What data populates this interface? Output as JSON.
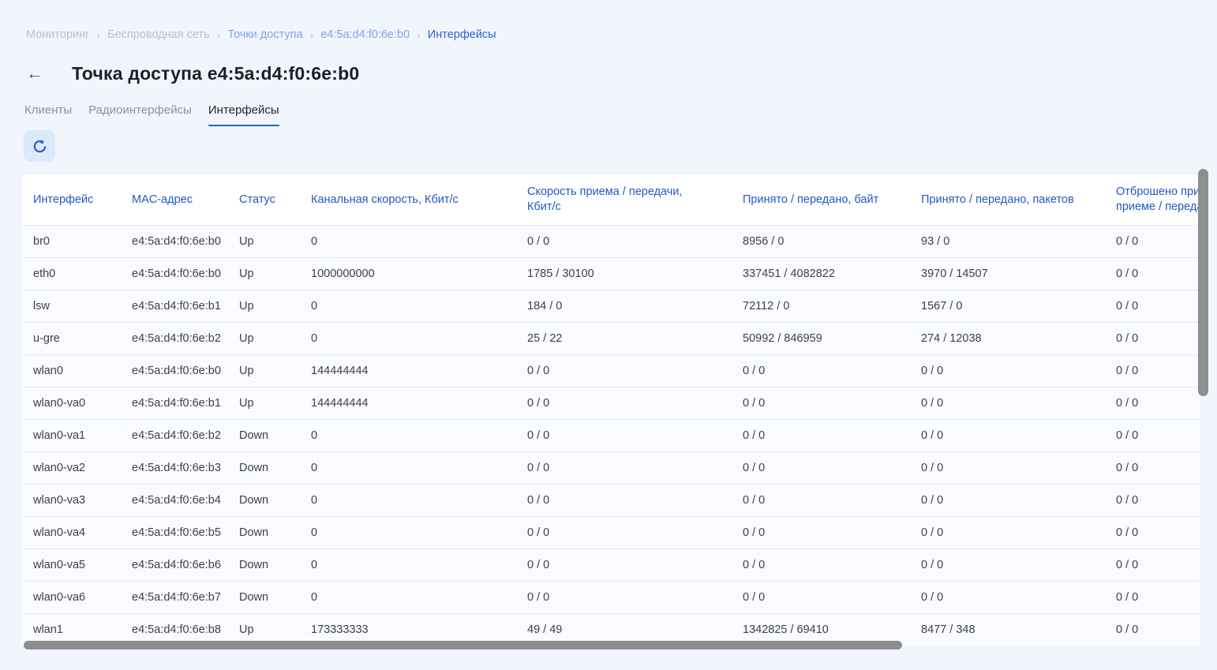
{
  "breadcrumb": {
    "separator": "›",
    "items": [
      {
        "label": "Мониторинг",
        "style": "muted"
      },
      {
        "label": "Беспроводная сеть",
        "style": "muted"
      },
      {
        "label": "Точки доступа",
        "style": "link"
      },
      {
        "label": "e4:5a:d4:f0:6e:b0",
        "style": "link"
      },
      {
        "label": "Интерфейсы",
        "style": "active"
      }
    ]
  },
  "header": {
    "back_icon": "←",
    "title": "Точка доступа e4:5a:d4:f0:6e:b0"
  },
  "tabs": [
    {
      "label": "Клиенты",
      "active": false
    },
    {
      "label": "Радиоинтерфейсы",
      "active": false
    },
    {
      "label": "Интерфейсы",
      "active": true
    }
  ],
  "toolbar": {
    "refresh_icon": "refresh-icon"
  },
  "table": {
    "columns": [
      "Интерфейс",
      "MAC-адрес",
      "Статус",
      "Канальная скорость, Кбит/с",
      "Скорость приема / передачи, Кбит/с",
      "Принято / передано, байт",
      "Принято / передано, пакетов",
      "Отброшено при приеме / передаче"
    ],
    "rows": [
      [
        "br0",
        "e4:5a:d4:f0:6e:b0",
        "Up",
        "0",
        "0 / 0",
        "8956 / 0",
        "93 / 0",
        "0 / 0"
      ],
      [
        "eth0",
        "e4:5a:d4:f0:6e:b0",
        "Up",
        "1000000000",
        "1785 / 30100",
        "337451 / 4082822",
        "3970 / 14507",
        "0 / 0"
      ],
      [
        "lsw",
        "e4:5a:d4:f0:6e:b1",
        "Up",
        "0",
        "184 / 0",
        "72112 / 0",
        "1567 / 0",
        "0 / 0"
      ],
      [
        "u-gre",
        "e4:5a:d4:f0:6e:b2",
        "Up",
        "0",
        "25 / 22",
        "50992 / 846959",
        "274 / 12038",
        "0 / 0"
      ],
      [
        "wlan0",
        "e4:5a:d4:f0:6e:b0",
        "Up",
        "144444444",
        "0 / 0",
        "0 / 0",
        "0 / 0",
        "0 / 0"
      ],
      [
        "wlan0-va0",
        "e4:5a:d4:f0:6e:b1",
        "Up",
        "144444444",
        "0 / 0",
        "0 / 0",
        "0 / 0",
        "0 / 0"
      ],
      [
        "wlan0-va1",
        "e4:5a:d4:f0:6e:b2",
        "Down",
        "0",
        "0 / 0",
        "0 / 0",
        "0 / 0",
        "0 / 0"
      ],
      [
        "wlan0-va2",
        "e4:5a:d4:f0:6e:b3",
        "Down",
        "0",
        "0 / 0",
        "0 / 0",
        "0 / 0",
        "0 / 0"
      ],
      [
        "wlan0-va3",
        "e4:5a:d4:f0:6e:b4",
        "Down",
        "0",
        "0 / 0",
        "0 / 0",
        "0 / 0",
        "0 / 0"
      ],
      [
        "wlan0-va4",
        "e4:5a:d4:f0:6e:b5",
        "Down",
        "0",
        "0 / 0",
        "0 / 0",
        "0 / 0",
        "0 / 0"
      ],
      [
        "wlan0-va5",
        "e4:5a:d4:f0:6e:b6",
        "Down",
        "0",
        "0 / 0",
        "0 / 0",
        "0 / 0",
        "0 / 0"
      ],
      [
        "wlan0-va6",
        "e4:5a:d4:f0:6e:b7",
        "Down",
        "0",
        "0 / 0",
        "0 / 0",
        "0 / 0",
        "0 / 0"
      ],
      [
        "wlan1",
        "e4:5a:d4:f0:6e:b8",
        "Up",
        "173333333",
        "49 / 49",
        "1342825 / 69410",
        "8477 / 348",
        "0 / 0"
      ]
    ]
  },
  "colors": {
    "accent": "#2563c9",
    "header_text": "#2258c5",
    "page_background": "#f1f5fc",
    "table_row_background": "#f9fbfe",
    "scrollbar": "#8e8e8e",
    "refresh_button_background": "#dce9fb"
  }
}
